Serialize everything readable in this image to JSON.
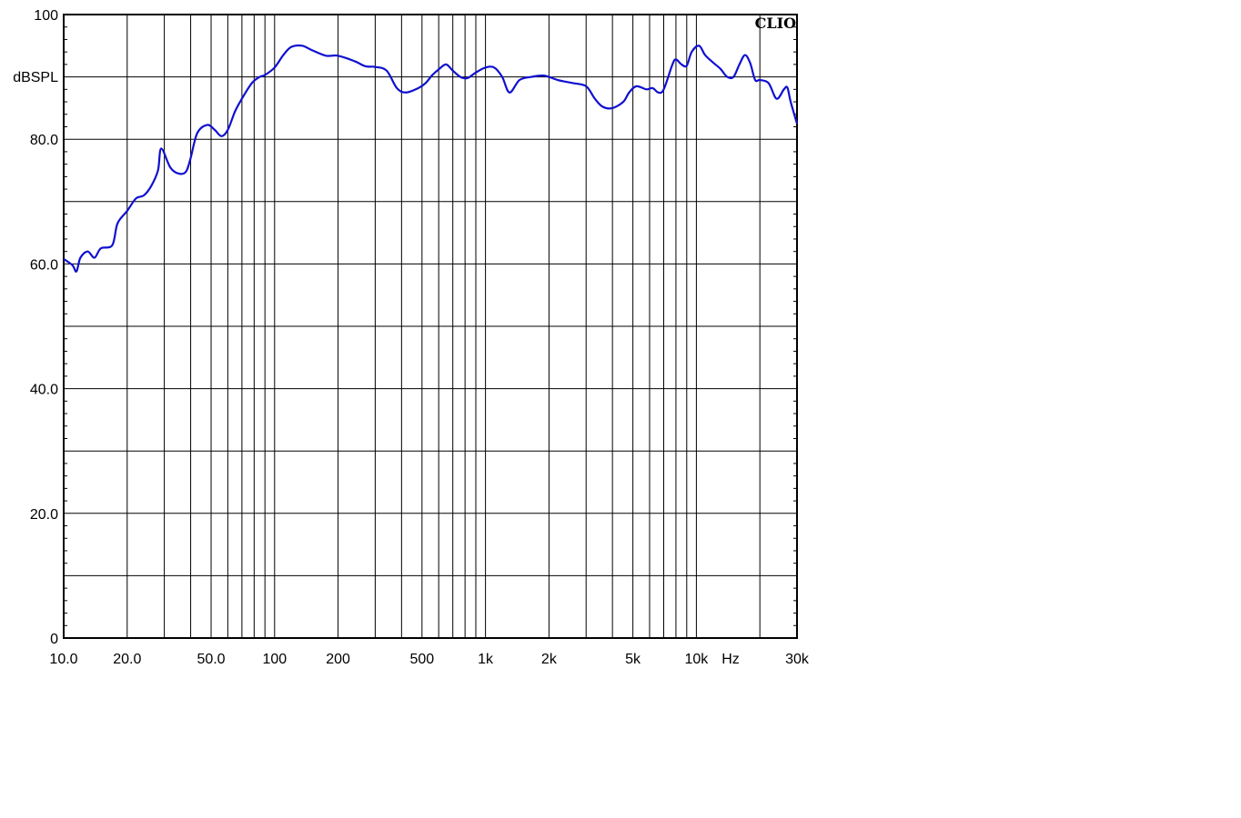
{
  "chart_data": {
    "type": "line",
    "brand": "CLIO",
    "ylabel": "dBSPL",
    "x_unit_label": "Hz",
    "x_scale": "log",
    "xlim": [
      10,
      30000
    ],
    "ylim": [
      0,
      100
    ],
    "grid": true,
    "x_tick_labels": [
      {
        "value": 10,
        "label": "10.0"
      },
      {
        "value": 20,
        "label": "20.0"
      },
      {
        "value": 50,
        "label": "50.0"
      },
      {
        "value": 100,
        "label": "100"
      },
      {
        "value": 200,
        "label": "200"
      },
      {
        "value": 500,
        "label": "500"
      },
      {
        "value": 1000,
        "label": "1k"
      },
      {
        "value": 2000,
        "label": "2k"
      },
      {
        "value": 5000,
        "label": "5k"
      },
      {
        "value": 10000,
        "label": "10k"
      },
      {
        "value": 30000,
        "label": "30k"
      }
    ],
    "y_tick_labels": [
      {
        "value": 100,
        "label": "100"
      },
      {
        "value": 80,
        "label": "80.0"
      },
      {
        "value": 60,
        "label": "60.0"
      },
      {
        "value": 40,
        "label": "40.0"
      },
      {
        "value": 20,
        "label": "20.0"
      },
      {
        "value": 0,
        "label": "0"
      }
    ],
    "series": [
      {
        "color": "#1010d0",
        "x": [
          10,
          11,
          11.5,
          12,
          13,
          14,
          15,
          17,
          18,
          20,
          22,
          24,
          26,
          28,
          29,
          32,
          35,
          38,
          40,
          43,
          48,
          52,
          56,
          60,
          65,
          70,
          78,
          85,
          90,
          100,
          110,
          120,
          135,
          150,
          175,
          200,
          240,
          270,
          300,
          340,
          380,
          420,
          480,
          520,
          560,
          600,
          650,
          700,
          760,
          820,
          900,
          1000,
          1100,
          1200,
          1300,
          1450,
          1650,
          1900,
          2200,
          2600,
          3000,
          3300,
          3600,
          4000,
          4500,
          4800,
          5200,
          5800,
          6200,
          6600,
          7000,
          7700,
          8000,
          8500,
          9000,
          9500,
          10300,
          11000,
          12000,
          13000,
          14000,
          15000,
          16000,
          17000,
          18000,
          19000,
          20000,
          22000,
          24000,
          26000,
          27000,
          28000,
          30000
        ],
        "values": [
          60.8,
          59.8,
          58.8,
          61.0,
          62.0,
          61.0,
          62.5,
          63.0,
          66.5,
          68.5,
          70.5,
          71.0,
          72.5,
          75.0,
          78.5,
          75.5,
          74.5,
          74.8,
          77.0,
          81.0,
          82.3,
          81.5,
          80.5,
          81.5,
          84.5,
          86.5,
          89.0,
          90.0,
          90.3,
          91.5,
          93.5,
          94.8,
          95.0,
          94.3,
          93.4,
          93.4,
          92.5,
          91.7,
          91.6,
          91.0,
          88.2,
          87.5,
          88.2,
          89.0,
          90.3,
          91.2,
          92.0,
          91.0,
          90.0,
          89.8,
          90.7,
          91.5,
          91.5,
          90.0,
          87.5,
          89.5,
          90.0,
          90.2,
          89.5,
          89.0,
          88.5,
          86.5,
          85.2,
          85.0,
          86.0,
          87.5,
          88.5,
          88.0,
          88.2,
          87.5,
          88.0,
          92.0,
          92.8,
          92.0,
          91.8,
          94.0,
          95.0,
          93.5,
          92.3,
          91.3,
          90.0,
          90.0,
          92.0,
          93.5,
          92.2,
          89.5,
          89.5,
          89.0,
          86.5,
          88.0,
          88.3,
          86.0,
          82.5
        ]
      }
    ]
  }
}
